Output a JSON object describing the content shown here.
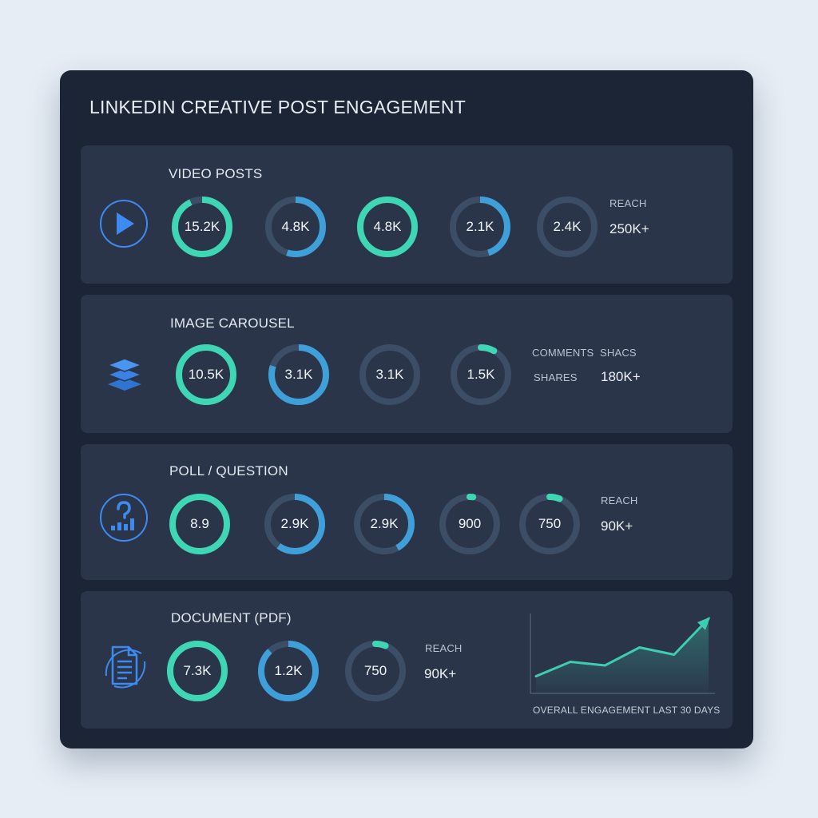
{
  "panel": {
    "title": "LINKEDIN CREATIVE POST ENGAGEMENT"
  },
  "colors": {
    "panel_bg": "#1c2535",
    "card_bg": "#2a3549",
    "ring_track": "#3c4d66",
    "teal": "#3ed6b5",
    "blue": "#3f9fd8",
    "icon_blue": "#3d8bf0",
    "chart_line": "#3ecdb1"
  },
  "rows": [
    {
      "title": "VIDEO POSTS",
      "icon": "play-circle-icon",
      "metrics": [
        {
          "label": "15.2K",
          "fraction": 0.93,
          "style": "teal"
        },
        {
          "label": "4.8K",
          "fraction": 0.55,
          "style": "blue"
        },
        {
          "label": "4.8K",
          "fraction": 1.0,
          "style": "teal"
        },
        {
          "label": "2.1K",
          "fraction": 0.45,
          "style": "blue"
        },
        {
          "label": "2.4K",
          "fraction": 0.0,
          "style": "blue"
        }
      ],
      "stats": [
        {
          "label": "REACH",
          "value": "250K+"
        }
      ]
    },
    {
      "title": "IMAGE CAROUSEL",
      "icon": "layers-icon",
      "metrics": [
        {
          "label": "10.5K",
          "fraction": 1.0,
          "style": "teal"
        },
        {
          "label": "3.1K",
          "fraction": 0.8,
          "style": "blue"
        },
        {
          "label": "3.1K",
          "fraction": 0.0,
          "style": "blue"
        },
        {
          "label": "1.5K",
          "fraction": 0.08,
          "style": "teal"
        }
      ],
      "stats": [
        {
          "label": "COMMENTS",
          "value": ""
        },
        {
          "label": "SHACS",
          "value": ""
        },
        {
          "label": "SHARES",
          "value": "180K+"
        }
      ]
    },
    {
      "title": "POLL / QUESTION",
      "icon": "poll-question-icon",
      "metrics": [
        {
          "label": "8.9",
          "fraction": 1.0,
          "style": "teal"
        },
        {
          "label": "2.9K",
          "fraction": 0.6,
          "style": "blue"
        },
        {
          "label": "2.9K",
          "fraction": 0.42,
          "style": "blue"
        },
        {
          "label": "900",
          "fraction": 0.02,
          "style": "teal"
        },
        {
          "label": "750",
          "fraction": 0.06,
          "style": "teal"
        }
      ],
      "stats": [
        {
          "label": "REACH",
          "value": "90K+"
        }
      ]
    },
    {
      "title": "DOCUMENT (PDF)",
      "icon": "document-icon",
      "metrics": [
        {
          "label": "7.3K",
          "fraction": 1.0,
          "style": "teal"
        },
        {
          "label": "1.2K",
          "fraction": 0.88,
          "style": "blue"
        },
        {
          "label": "750",
          "fraction": 0.06,
          "style": "teal"
        }
      ],
      "stats": [
        {
          "label": "REACH",
          "value": "90K+"
        }
      ]
    }
  ],
  "chart_data": {
    "type": "area",
    "x": [
      1,
      2,
      3,
      4,
      5,
      6
    ],
    "values": [
      15,
      35,
      30,
      55,
      45,
      95
    ],
    "ylim": [
      0,
      100
    ],
    "grid": false,
    "title": "",
    "xlabel": "OVERALL ENGAGEMENT LAST 30 DAYS",
    "ylabel": ""
  }
}
